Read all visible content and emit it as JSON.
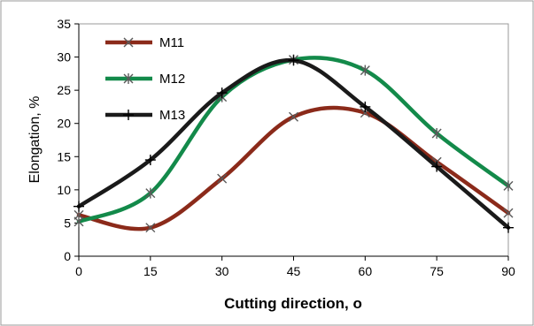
{
  "chart_data": {
    "type": "line",
    "xlabel": "Cutting direction, o",
    "ylabel": "Elongation, %",
    "x": [
      0,
      15,
      30,
      45,
      60,
      75,
      90
    ],
    "xlim": [
      0,
      90
    ],
    "ylim": [
      0,
      35
    ],
    "xticks": [
      0,
      15,
      30,
      45,
      60,
      75,
      90
    ],
    "yticks": [
      0,
      5,
      10,
      15,
      20,
      25,
      30,
      35
    ],
    "grid": false,
    "smooth": true,
    "legend": "top-left",
    "series": [
      {
        "name": "M11",
        "marker": "x",
        "color": "#8B2A1A",
        "values": [
          6.2,
          4.3,
          11.7,
          21.0,
          21.6,
          14.2,
          6.5
        ]
      },
      {
        "name": "M12",
        "marker": "asterisk",
        "color": "#138A4A",
        "values": [
          5.2,
          9.5,
          24.0,
          29.6,
          28.0,
          18.5,
          10.6
        ]
      },
      {
        "name": "M13",
        "marker": "plus",
        "color": "#1A1A1A",
        "values": [
          7.5,
          14.5,
          24.6,
          29.5,
          22.5,
          13.5,
          4.3
        ]
      }
    ]
  }
}
